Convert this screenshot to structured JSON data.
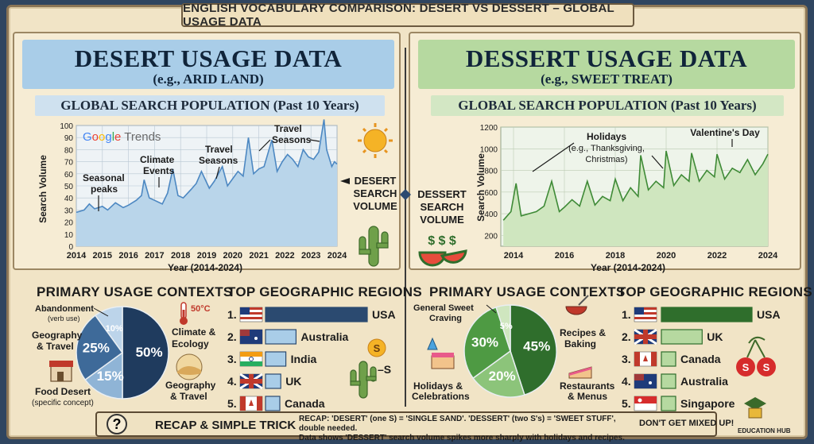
{
  "banner": "ENGLISH VOCABULARY COMPARISON: DESERT VS DESSERT – GLOBAL USAGE DATA",
  "desert": {
    "title": "DESERT USAGE DATA",
    "subtitle": "(e.g., ARID LAND)",
    "section": "GLOBAL SEARCH POPULATION (Past 10 Years)",
    "logo": "Google Trends",
    "volume_label": [
      "DESERT",
      "SEARCH",
      "VOLUME"
    ],
    "annotations": [
      "Seasonal",
      "peaks",
      "Climate",
      "Events",
      "Travel",
      "Seasons",
      "Travel",
      "Seasons"
    ],
    "contexts_title": "PRIMARY USAGE CONTEXTS",
    "regions_title": "TOP GEOGRAPHIC REGIONS",
    "thermo_label": "50°C",
    "dash_s": "–S",
    "pie_labels": {
      "abandonment": "Abandonment",
      "abandonment_sub": "(verb use)",
      "geo_left": [
        "Geography",
        "& Travel"
      ],
      "climate": [
        "Climate &",
        "Ecology"
      ],
      "geo_right": [
        "Geography",
        "& Travel"
      ],
      "food": "Food Desert",
      "food_sub": "(specific concept)"
    }
  },
  "dessert": {
    "title": "DESSERT USAGE DATA",
    "subtitle": "(e.g., SWEET TREAT)",
    "section": "GLOBAL SEARCH POPULATION (Past 10 Years)",
    "volume_label": [
      "DESSERT",
      "SEARCH",
      "VOLUME"
    ],
    "dollar": "$ $ $",
    "annotations": [
      "Holidays",
      "(e.g., Thanksgiving,",
      "Christmas)",
      "Valentine's Day"
    ],
    "contexts_title": "PRIMARY USAGE CONTEXTS",
    "regions_title": "TOP GEOGRAPHIC REGIONS",
    "pie_labels": {
      "general": [
        "General Sweet",
        "Craving"
      ],
      "recipes": [
        "Recipes &",
        "Baking"
      ],
      "holidays": [
        "Holidays &",
        "Celebrations"
      ],
      "restaurants": [
        "Restaurants",
        "& Menus"
      ]
    }
  },
  "chart_data": [
    {
      "type": "line",
      "title": "GLOBAL SEARCH POPULATION (Past 10 Years)",
      "xlabel": "Year (2014-2024)",
      "ylabel": "Search Volume",
      "x_ticks": [
        "2014",
        "2015",
        "2016",
        "2017",
        "2018",
        "2019",
        "2020",
        "2021",
        "2022",
        "2023",
        "2024"
      ],
      "y_ticks": [
        0,
        10,
        20,
        30,
        40,
        50,
        60,
        70,
        80,
        90,
        100
      ],
      "xlim": [
        2014,
        2024
      ],
      "ylim": [
        0,
        100
      ],
      "series": [
        {
          "name": "DESERT SEARCH VOLUME",
          "x": [
            2014.0,
            2014.3,
            2014.5,
            2014.7,
            2015.0,
            2015.2,
            2015.5,
            2015.8,
            2016.0,
            2016.3,
            2016.5,
            2016.6,
            2016.8,
            2017.0,
            2017.3,
            2017.5,
            2017.7,
            2017.9,
            2018.1,
            2018.4,
            2018.6,
            2018.8,
            2019.1,
            2019.3,
            2019.6,
            2019.8,
            2020.0,
            2020.2,
            2020.4,
            2020.6,
            2020.8,
            2021.0,
            2021.2,
            2021.5,
            2021.7,
            2021.9,
            2022.1,
            2022.3,
            2022.5,
            2022.7,
            2022.9,
            2023.1,
            2023.3,
            2023.5,
            2023.6,
            2023.8,
            2023.9,
            2024.0
          ],
          "values": [
            28,
            30,
            35,
            31,
            33,
            30,
            36,
            32,
            34,
            38,
            42,
            55,
            40,
            38,
            35,
            44,
            64,
            42,
            40,
            47,
            52,
            62,
            48,
            54,
            66,
            50,
            56,
            62,
            58,
            90,
            60,
            64,
            66,
            88,
            62,
            70,
            76,
            72,
            66,
            80,
            74,
            72,
            78,
            105,
            80,
            66,
            70,
            68
          ]
        }
      ]
    },
    {
      "type": "line",
      "title": "GLOBAL SEARCH POPULATION (Past 10 Years)",
      "xlabel": "Year (2014-2024)",
      "ylabel": "Search Volume",
      "x_ticks": [
        "2014",
        "2016",
        "2018",
        "2020",
        "2022",
        "2024"
      ],
      "y_ticks": [
        200,
        400,
        600,
        800,
        1000,
        1200
      ],
      "xlim": [
        2013.5,
        2024
      ],
      "ylim": [
        100,
        1200
      ],
      "series": [
        {
          "name": "DESSERT SEARCH VOLUME",
          "x": [
            2013.6,
            2013.9,
            2014.1,
            2014.3,
            2014.6,
            2014.9,
            2015.2,
            2015.5,
            2015.8,
            2016.0,
            2016.3,
            2016.6,
            2016.9,
            2017.2,
            2017.5,
            2017.8,
            2018.0,
            2018.3,
            2018.6,
            2018.9,
            2019.0,
            2019.3,
            2019.6,
            2019.9,
            2020.0,
            2020.3,
            2020.6,
            2020.9,
            2021.0,
            2021.3,
            2021.6,
            2021.9,
            2022.0,
            2022.3,
            2022.6,
            2022.9,
            2023.2,
            2023.5,
            2023.8,
            2024.0
          ],
          "values": [
            340,
            420,
            680,
            380,
            400,
            420,
            470,
            700,
            420,
            460,
            530,
            470,
            700,
            480,
            560,
            520,
            720,
            520,
            640,
            560,
            940,
            620,
            700,
            640,
            980,
            660,
            760,
            700,
            960,
            700,
            800,
            740,
            950,
            720,
            820,
            780,
            900,
            760,
            860,
            950
          ]
        }
      ]
    },
    {
      "type": "pie",
      "title": "PRIMARY USAGE CONTEXTS",
      "labels": [
        "50%",
        "15%",
        "25%",
        "10%"
      ],
      "values": [
        50,
        15,
        25,
        10
      ]
    },
    {
      "type": "pie",
      "title": "PRIMARY USAGE CONTEXTS",
      "labels": [
        "45%",
        "20%",
        "30%",
        "5%"
      ],
      "values": [
        45,
        20,
        30,
        5
      ]
    },
    {
      "type": "bar",
      "title": "TOP GEOGRAPHIC REGIONS",
      "categories": [
        "USA",
        "Australia",
        "India",
        "UK",
        "Canada"
      ],
      "ranks": [
        "1.",
        "2.",
        "3.",
        "4.",
        "5."
      ],
      "values": [
        100,
        30,
        20,
        15,
        12
      ]
    },
    {
      "type": "bar",
      "title": "TOP GEOGRAPHIC REGIONS",
      "categories": [
        "USA",
        "UK",
        "Canada",
        "Australia",
        "Singapore"
      ],
      "ranks": [
        "1.",
        "2.",
        "3.",
        "4.",
        "5."
      ],
      "values": [
        100,
        45,
        10,
        10,
        10
      ]
    }
  ],
  "recap": {
    "title": "RECAP & SIMPLE TRICK",
    "text1": "RECAP: 'DESERT' (one S) = 'SINGLE SAND'. 'DESSERT' (two S's) = 'SWEET STUFF', double needed.",
    "text2": "Data shows 'DESSERT' search volume spikes more sharply with holidays and recipes.",
    "warning": "DON'T GET MIXED UP!",
    "brand": "EDUCATION HUB",
    "question": "?"
  },
  "colors": {
    "desert_blue": "#2b4a70",
    "desert_light": "#a9cde8",
    "dessert_green": "#2f6e2c",
    "dessert_light": "#b6d9a0",
    "paper": "#f1e4c6"
  }
}
